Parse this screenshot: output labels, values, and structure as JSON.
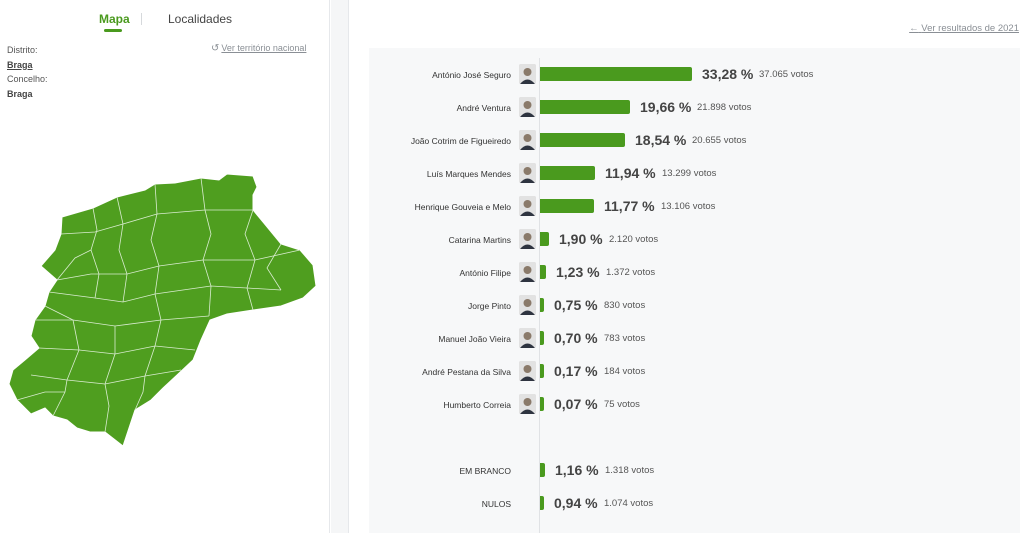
{
  "tabs": {
    "map_label": "Mapa",
    "localities_label": "Localidades"
  },
  "location": {
    "district_label": "Distrito:",
    "district_value": "Braga",
    "council_label": "Concelho:",
    "council_value": "Braga",
    "national_link": "Ver território nacional"
  },
  "prev_results_link": "Ver resultados de 2021",
  "colors": {
    "accent": "#4a9a1e",
    "map_fill": "#4f9e1f"
  },
  "chart_data": {
    "type": "bar",
    "orientation": "horizontal",
    "unit": "%",
    "candidates": [
      {
        "name": "António José Seguro",
        "pct": 33.28,
        "pct_label": "33,28 %",
        "votes_label": "37.065 votos",
        "avatar": "portrait-icon"
      },
      {
        "name": "André Ventura",
        "pct": 19.66,
        "pct_label": "19,66 %",
        "votes_label": "21.898 votos",
        "avatar": "portrait-icon"
      },
      {
        "name": "João Cotrim de Figueiredo",
        "pct": 18.54,
        "pct_label": "18,54 %",
        "votes_label": "20.655 votos",
        "avatar": "portrait-icon"
      },
      {
        "name": "Luís Marques Mendes",
        "pct": 11.94,
        "pct_label": "11,94 %",
        "votes_label": "13.299 votos",
        "avatar": "portrait-icon"
      },
      {
        "name": "Henrique Gouveia e Melo",
        "pct": 11.77,
        "pct_label": "11,77 %",
        "votes_label": "13.106 votos",
        "avatar": "portrait-icon"
      },
      {
        "name": "Catarina Martins",
        "pct": 1.9,
        "pct_label": "1,90 %",
        "votes_label": "2.120 votos",
        "avatar": "portrait-icon"
      },
      {
        "name": "António Filipe",
        "pct": 1.23,
        "pct_label": "1,23 %",
        "votes_label": "1.372 votos",
        "avatar": "portrait-icon"
      },
      {
        "name": "Jorge Pinto",
        "pct": 0.75,
        "pct_label": "0,75 %",
        "votes_label": "830 votos",
        "avatar": "portrait-icon"
      },
      {
        "name": "Manuel João Vieira",
        "pct": 0.7,
        "pct_label": "0,70 %",
        "votes_label": "783 votos",
        "avatar": "portrait-icon"
      },
      {
        "name": "André Pestana da Silva",
        "pct": 0.17,
        "pct_label": "0,17 %",
        "votes_label": "184 votos",
        "avatar": "portrait-icon"
      },
      {
        "name": "Humberto Correia",
        "pct": 0.07,
        "pct_label": "0,07 %",
        "votes_label": "75 votos",
        "avatar": "portrait-icon"
      }
    ],
    "others": [
      {
        "name": "EM BRANCO",
        "pct": 1.16,
        "pct_label": "1,16 %",
        "votes_label": "1.318 votos"
      },
      {
        "name": "NULOS",
        "pct": 0.94,
        "pct_label": "0,94 %",
        "votes_label": "1.074 votos"
      }
    ]
  }
}
